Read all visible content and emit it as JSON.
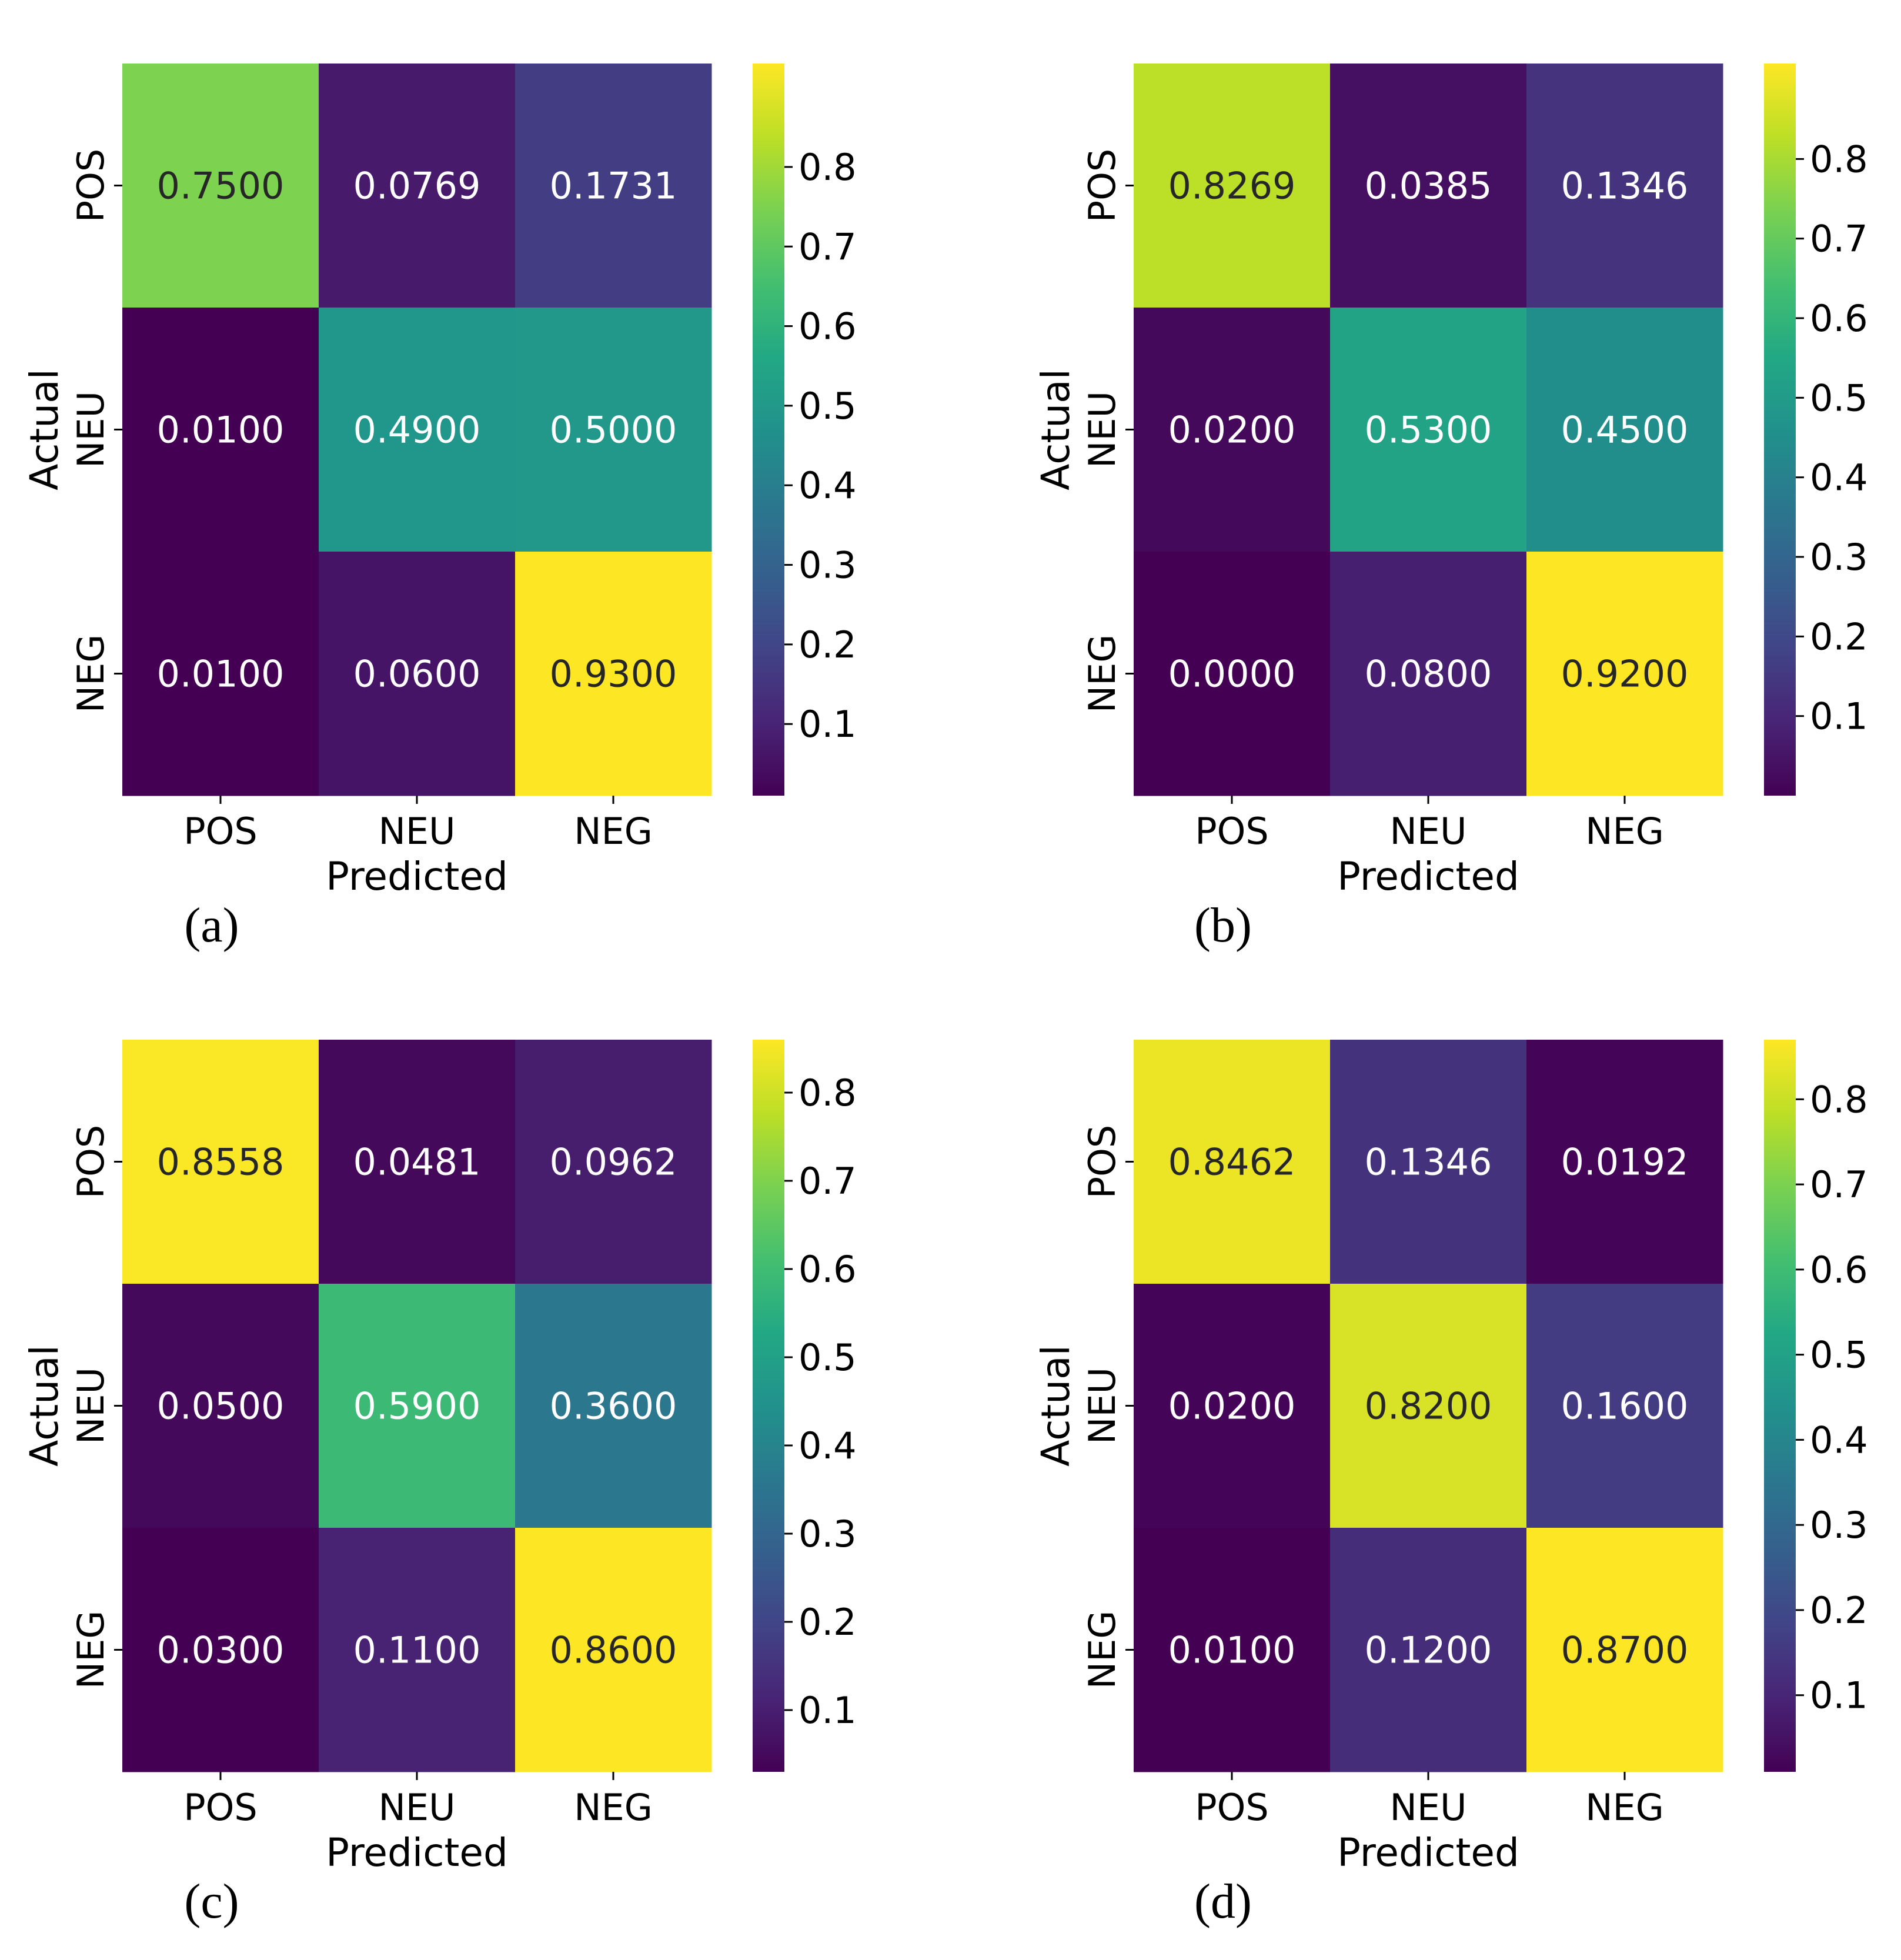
{
  "figure": {
    "colormap": "viridis",
    "chart_data": [
      {
        "type": "heatmap",
        "panel_label": "(a)",
        "xlabel": "Predicted",
        "ylabel": "Actual",
        "x_categories": [
          "POS",
          "NEU",
          "NEG"
        ],
        "y_categories": [
          "POS",
          "NEU",
          "NEG"
        ],
        "values": [
          [
            0.75,
            0.0769,
            0.1731
          ],
          [
            0.01,
            0.49,
            0.5
          ],
          [
            0.01,
            0.06,
            0.93
          ]
        ],
        "cell_labels": [
          [
            "0.7500",
            "0.0769",
            "0.1731"
          ],
          [
            "0.0100",
            "0.4900",
            "0.5000"
          ],
          [
            "0.0100",
            "0.0600",
            "0.9300"
          ]
        ],
        "colorbar": {
          "range": [
            0.01,
            0.93
          ],
          "ticks": [
            0.1,
            0.2,
            0.3,
            0.4,
            0.5,
            0.6,
            0.7,
            0.8
          ],
          "tick_labels": [
            "0.1",
            "0.2",
            "0.3",
            "0.4",
            "0.5",
            "0.6",
            "0.7",
            "0.8"
          ]
        }
      },
      {
        "type": "heatmap",
        "panel_label": "(b)",
        "xlabel": "Predicted",
        "ylabel": "Actual",
        "x_categories": [
          "POS",
          "NEU",
          "NEG"
        ],
        "y_categories": [
          "POS",
          "NEU",
          "NEG"
        ],
        "values": [
          [
            0.8269,
            0.0385,
            0.1346
          ],
          [
            0.02,
            0.53,
            0.45
          ],
          [
            0.0,
            0.08,
            0.92
          ]
        ],
        "cell_labels": [
          [
            "0.8269",
            "0.0385",
            "0.1346"
          ],
          [
            "0.0200",
            "0.5300",
            "0.4500"
          ],
          [
            "0.0000",
            "0.0800",
            "0.9200"
          ]
        ],
        "colorbar": {
          "range": [
            0.0,
            0.92
          ],
          "ticks": [
            0.1,
            0.2,
            0.3,
            0.4,
            0.5,
            0.6,
            0.7,
            0.8
          ],
          "tick_labels": [
            "0.1",
            "0.2",
            "0.3",
            "0.4",
            "0.5",
            "0.6",
            "0.7",
            "0.8"
          ]
        }
      },
      {
        "type": "heatmap",
        "panel_label": "(c)",
        "xlabel": "Predicted",
        "ylabel": "Actual",
        "x_categories": [
          "POS",
          "NEU",
          "NEG"
        ],
        "y_categories": [
          "POS",
          "NEU",
          "NEG"
        ],
        "values": [
          [
            0.8558,
            0.0481,
            0.0962
          ],
          [
            0.05,
            0.59,
            0.36
          ],
          [
            0.03,
            0.11,
            0.86
          ]
        ],
        "cell_labels": [
          [
            "0.8558",
            "0.0481",
            "0.0962"
          ],
          [
            "0.0500",
            "0.5900",
            "0.3600"
          ],
          [
            "0.0300",
            "0.1100",
            "0.8600"
          ]
        ],
        "colorbar": {
          "range": [
            0.03,
            0.86
          ],
          "ticks": [
            0.1,
            0.2,
            0.3,
            0.4,
            0.5,
            0.6,
            0.7,
            0.8
          ],
          "tick_labels": [
            "0.1",
            "0.2",
            "0.3",
            "0.4",
            "0.5",
            "0.6",
            "0.7",
            "0.8"
          ]
        }
      },
      {
        "type": "heatmap",
        "panel_label": "(d)",
        "xlabel": "Predicted",
        "ylabel": "Actual",
        "x_categories": [
          "POS",
          "NEU",
          "NEG"
        ],
        "y_categories": [
          "POS",
          "NEU",
          "NEG"
        ],
        "values": [
          [
            0.8462,
            0.1346,
            0.0192
          ],
          [
            0.02,
            0.82,
            0.16
          ],
          [
            0.01,
            0.12,
            0.87
          ]
        ],
        "cell_labels": [
          [
            "0.8462",
            "0.1346",
            "0.0192"
          ],
          [
            "0.0200",
            "0.8200",
            "0.1600"
          ],
          [
            "0.0100",
            "0.1200",
            "0.8700"
          ]
        ],
        "colorbar": {
          "range": [
            0.01,
            0.87
          ],
          "ticks": [
            0.1,
            0.2,
            0.3,
            0.4,
            0.5,
            0.6,
            0.7,
            0.8
          ],
          "tick_labels": [
            "0.1",
            "0.2",
            "0.3",
            "0.4",
            "0.5",
            "0.6",
            "0.7",
            "0.8"
          ]
        }
      }
    ]
  }
}
